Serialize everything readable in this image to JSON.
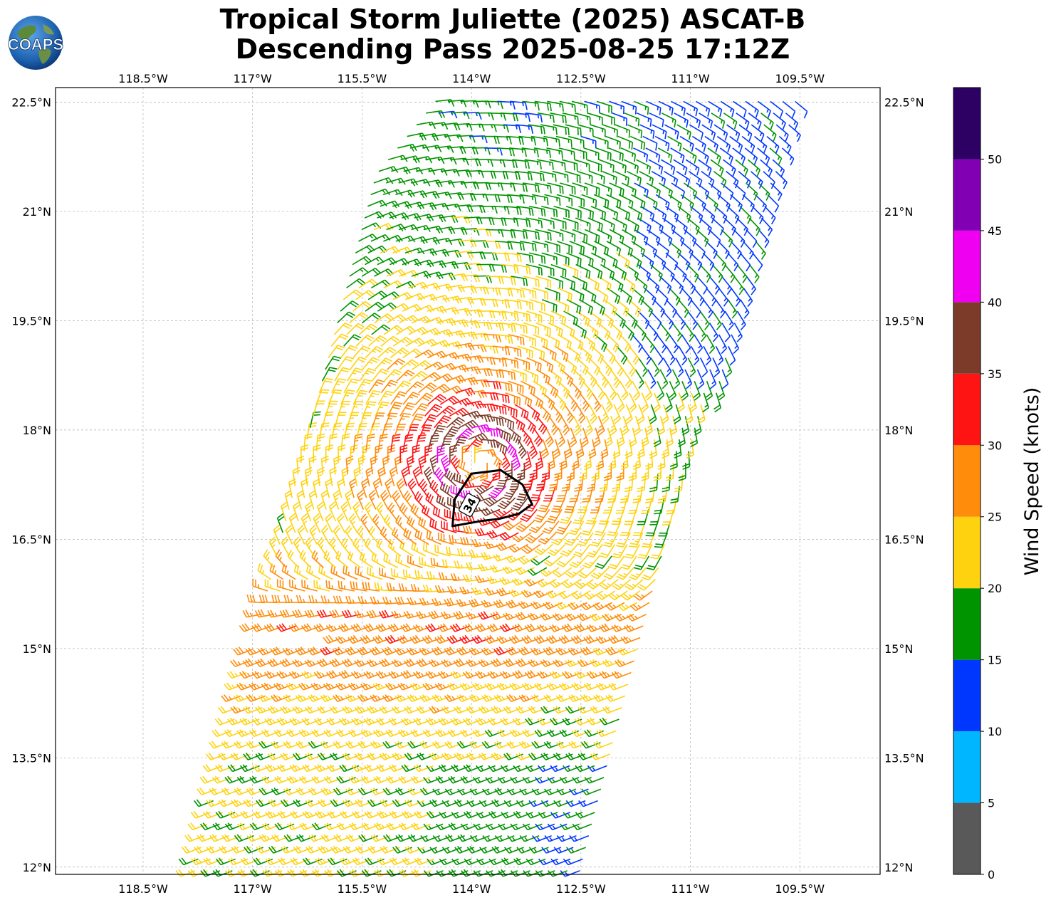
{
  "title": {
    "line1": "Tropical Storm Juliette (2025) ASCAT-B",
    "line2": "Descending Pass 2025-08-25 17:12Z"
  },
  "logo": {
    "text": "COAPS",
    "icon": "globe-logo-icon"
  },
  "map": {
    "lon_range": [
      -119.7,
      -108.4
    ],
    "lat_range": [
      11.9,
      22.7
    ],
    "lon_ticks": [
      -118.5,
      -117,
      -115.5,
      -114,
      -112.5,
      -111,
      -109.5
    ],
    "lon_tick_labels": [
      "118.5°W",
      "117°W",
      "115.5°W",
      "114°W",
      "112.5°W",
      "111°W",
      "109.5°W"
    ],
    "lat_ticks": [
      22.5,
      21,
      19.5,
      18,
      16.5,
      15,
      13.5,
      12
    ],
    "lat_tick_labels": [
      "22.5°N",
      "21°N",
      "19.5°N",
      "18°N",
      "16.5°N",
      "15°N",
      "13.5°N",
      "12°N"
    ],
    "grid": true,
    "storm_center": {
      "lon": -113.9,
      "lat": 17.55
    },
    "contour": {
      "label": "34",
      "lon": [
        -114.26,
        -113.87,
        -113.62,
        -113.35,
        -113.17,
        -113.3,
        -113.6,
        -114.0,
        -114.23,
        -114.26
      ],
      "lat": [
        16.68,
        16.75,
        16.78,
        16.85,
        16.98,
        17.25,
        17.45,
        17.4,
        17.05,
        16.68
      ]
    },
    "swath": {
      "top_left_lon": -115.0,
      "top_right_lon": -109.45,
      "bottom_left_lon": -117.8,
      "bottom_right_lon": -112.4,
      "top_lat": 22.7,
      "bottom_lat": 11.9,
      "gap_lats": [
        15.05,
        16.45
      ]
    }
  },
  "colorbar": {
    "label": "Wind Speed (knots)",
    "bounds": [
      0,
      5,
      10,
      15,
      20,
      25,
      30,
      35,
      40,
      45,
      50,
      55
    ],
    "colors": [
      "#595959",
      "#00b7ff",
      "#0037ff",
      "#009400",
      "#ffd20f",
      "#ff8c0a",
      "#ff1414",
      "#7c3a28",
      "#f000f0",
      "#8200b4",
      "#2d0064"
    ],
    "tick_values": [
      0,
      5,
      10,
      15,
      20,
      25,
      30,
      35,
      40,
      45,
      50
    ],
    "tick_labels": [
      "0",
      "5",
      "10",
      "15",
      "20",
      "25",
      "30",
      "35",
      "40",
      "45",
      "50"
    ]
  }
}
